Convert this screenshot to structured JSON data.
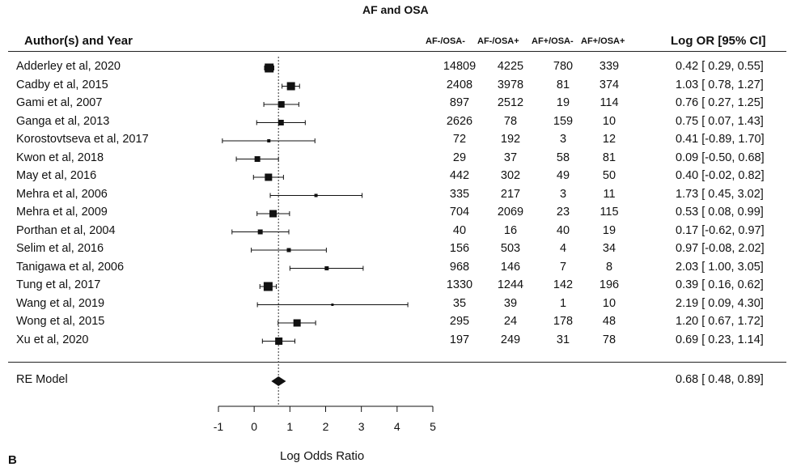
{
  "chart_data": {
    "type": "forest",
    "title": "AF and OSA",
    "xlabel": "Log Odds Ratio",
    "xlim": [
      -1,
      5
    ],
    "xticks": [
      -1,
      0,
      1,
      2,
      3,
      4,
      5
    ],
    "reference_line": 0.68,
    "headers": {
      "study": "Author(s) and Year",
      "c1": "AF-/OSA-",
      "c2": "AF-/OSA+",
      "c3": "AF+/OSA-",
      "c4": "AF+/OSA+",
      "effect": "Log OR [95% CI]"
    },
    "studies": [
      {
        "name": "Adderley et al, 2020",
        "c1": "14809",
        "c2": "4225",
        "c3": "780",
        "c4": "339",
        "est": 0.42,
        "lo": 0.29,
        "hi": 0.55,
        "ci_text": "0.42 [ 0.29, 0.55]",
        "w": 11
      },
      {
        "name": "Cadby et al, 2015",
        "c1": "2408",
        "c2": "3978",
        "c3": "81",
        "c4": "374",
        "est": 1.03,
        "lo": 0.78,
        "hi": 1.27,
        "ci_text": "1.03 [ 0.78, 1.27]",
        "w": 10
      },
      {
        "name": "Gami et al, 2007",
        "c1": "897",
        "c2": "2512",
        "c3": "19",
        "c4": "114",
        "est": 0.76,
        "lo": 0.27,
        "hi": 1.25,
        "ci_text": "0.76 [ 0.27, 1.25]",
        "w": 8
      },
      {
        "name": "Ganga et al, 2013",
        "c1": "2626",
        "c2": "78",
        "c3": "159",
        "c4": "10",
        "est": 0.75,
        "lo": 0.07,
        "hi": 1.43,
        "ci_text": "0.75 [ 0.07, 1.43]",
        "w": 7
      },
      {
        "name": "Korostovtseva et al, 2017",
        "c1": "72",
        "c2": "192",
        "c3": "3",
        "c4": "12",
        "est": 0.41,
        "lo": -0.89,
        "hi": 1.7,
        "ci_text": "0.41 [-0.89, 1.70]",
        "w": 4
      },
      {
        "name": "Kwon et al, 2018",
        "c1": "29",
        "c2": "37",
        "c3": "58",
        "c4": "81",
        "est": 0.09,
        "lo": -0.5,
        "hi": 0.68,
        "ci_text": "0.09 [-0.50, 0.68]",
        "w": 7
      },
      {
        "name": "May et al, 2016",
        "c1": "442",
        "c2": "302",
        "c3": "49",
        "c4": "50",
        "est": 0.4,
        "lo": -0.02,
        "hi": 0.82,
        "ci_text": "0.40 [-0.02, 0.82]",
        "w": 9
      },
      {
        "name": "Mehra et al, 2006",
        "c1": "335",
        "c2": "217",
        "c3": "3",
        "c4": "11",
        "est": 1.73,
        "lo": 0.45,
        "hi": 3.02,
        "ci_text": "1.73 [ 0.45, 3.02]",
        "w": 4
      },
      {
        "name": "Mehra et al, 2009",
        "c1": "704",
        "c2": "2069",
        "c3": "23",
        "c4": "115",
        "est": 0.53,
        "lo": 0.08,
        "hi": 0.99,
        "ci_text": "0.53 [ 0.08, 0.99]",
        "w": 9
      },
      {
        "name": "Porthan et al, 2004",
        "c1": "40",
        "c2": "16",
        "c3": "40",
        "c4": "19",
        "est": 0.17,
        "lo": -0.62,
        "hi": 0.97,
        "ci_text": "0.17 [-0.62, 0.97]",
        "w": 6
      },
      {
        "name": "Selim et al, 2016",
        "c1": "156",
        "c2": "503",
        "c3": "4",
        "c4": "34",
        "est": 0.97,
        "lo": -0.08,
        "hi": 2.02,
        "ci_text": "0.97 [-0.08, 2.02]",
        "w": 5
      },
      {
        "name": "Tanigawa et al, 2006",
        "c1": "968",
        "c2": "146",
        "c3": "7",
        "c4": "8",
        "est": 2.03,
        "lo": 1.0,
        "hi": 3.05,
        "ci_text": "2.03 [ 1.00, 3.05]",
        "w": 5
      },
      {
        "name": "Tung et al, 2017",
        "c1": "1330",
        "c2": "1244",
        "c3": "142",
        "c4": "196",
        "est": 0.39,
        "lo": 0.16,
        "hi": 0.62,
        "ci_text": "0.39 [ 0.16, 0.62]",
        "w": 11
      },
      {
        "name": "Wang et al, 2019",
        "c1": "35",
        "c2": "39",
        "c3": "1",
        "c4": "10",
        "est": 2.19,
        "lo": 0.09,
        "hi": 4.3,
        "ci_text": "2.19 [ 0.09, 4.30]",
        "w": 3
      },
      {
        "name": "Wong et al, 2015",
        "c1": "295",
        "c2": "24",
        "c3": "178",
        "c4": "48",
        "est": 1.2,
        "lo": 0.67,
        "hi": 1.72,
        "ci_text": "1.20 [ 0.67, 1.72]",
        "w": 9
      },
      {
        "name": "Xu et al, 2020",
        "c1": "197",
        "c2": "249",
        "c3": "31",
        "c4": "78",
        "est": 0.69,
        "lo": 0.23,
        "hi": 1.14,
        "ci_text": "0.69 [ 0.23, 1.14]",
        "w": 9
      }
    ],
    "summary": {
      "name": "RE Model",
      "est": 0.68,
      "lo": 0.48,
      "hi": 0.89,
      "ci_text": "0.68 [ 0.48, 0.89]"
    }
  },
  "panel_label": "B"
}
